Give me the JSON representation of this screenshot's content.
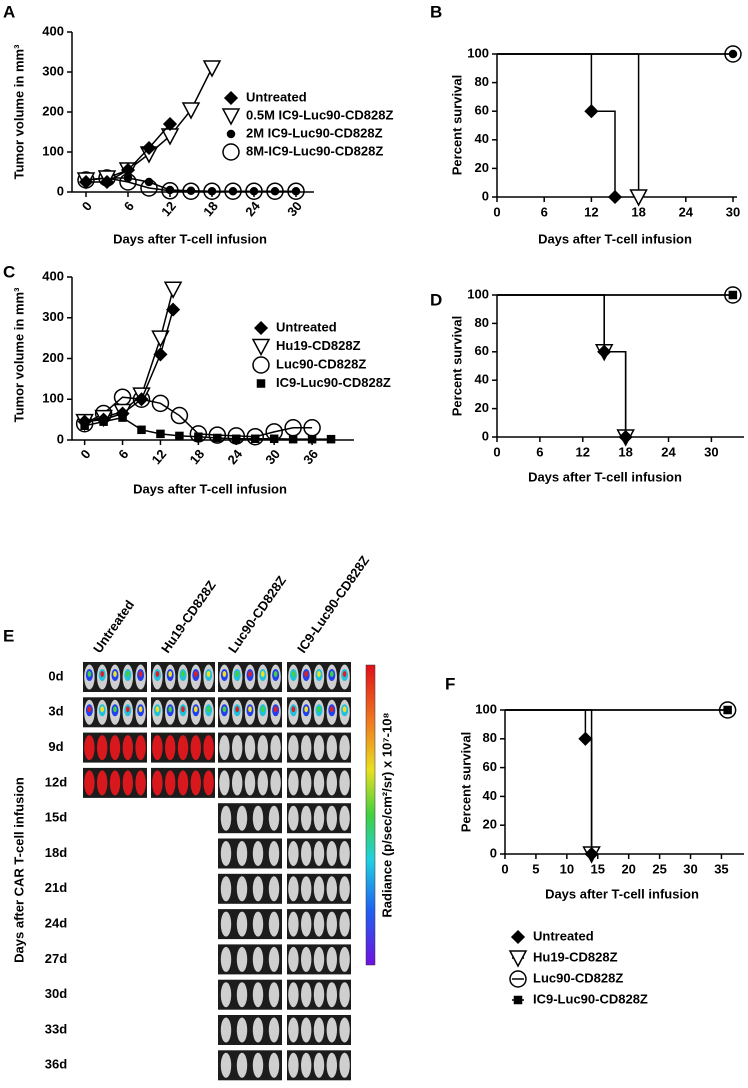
{
  "chart_data": [
    {
      "panel": "A",
      "type": "line",
      "color": "#000000",
      "x_label": "Days after T-cell infusion",
      "y_label": "Tumor volume in mm³",
      "xlim": [
        -2,
        32
      ],
      "ylim": [
        0,
        400
      ],
      "xticks": [
        0,
        6,
        12,
        18,
        24,
        30
      ],
      "yticks": [
        0,
        100,
        200,
        300,
        400
      ],
      "legend": "right",
      "series": [
        {
          "name": "Untreated",
          "marker": "diamond",
          "x": [
            0,
            3,
            6,
            9,
            12
          ],
          "values": [
            25,
            25,
            55,
            110,
            170
          ]
        },
        {
          "name": "0.5M IC9-Luc90-CD828Z",
          "marker": "triangle",
          "x": [
            0,
            3,
            6,
            9,
            12,
            15,
            18
          ],
          "values": [
            30,
            35,
            55,
            95,
            140,
            205,
            310
          ]
        },
        {
          "name": "2M IC9-Luc90-CD828Z",
          "marker": "dot",
          "x": [
            0,
            3,
            6,
            9,
            12,
            15,
            18,
            21,
            24,
            27,
            30
          ],
          "values": [
            30,
            35,
            35,
            25,
            5,
            3,
            2,
            2,
            2,
            2,
            2
          ]
        },
        {
          "name": "8M-IC9-Luc90-CD828Z",
          "marker": "circle",
          "x": [
            0,
            3,
            6,
            9,
            12,
            15,
            18,
            21,
            24,
            27,
            30
          ],
          "values": [
            30,
            35,
            25,
            10,
            3,
            2,
            2,
            2,
            2,
            2,
            2
          ]
        }
      ]
    },
    {
      "panel": "B",
      "type": "step",
      "color": "#000000",
      "x_label": "Days after T-cell infusion",
      "y_label": "Percent survival",
      "xlim": [
        0,
        30
      ],
      "ylim": [
        0,
        100
      ],
      "xticks": [
        0,
        6,
        12,
        18,
        24,
        30
      ],
      "yticks": [
        0,
        20,
        40,
        60,
        80,
        100
      ],
      "series": [
        {
          "marker": "diamond",
          "x": [
            0,
            12,
            15
          ],
          "values": [
            100,
            60,
            0
          ]
        },
        {
          "marker": "triangle",
          "x": [
            0,
            18
          ],
          "values": [
            100,
            0
          ]
        },
        {
          "marker": "dot",
          "x": [
            0,
            30
          ],
          "values": [
            100,
            100
          ]
        },
        {
          "marker": "circle",
          "x": [
            0,
            30
          ],
          "values": [
            100,
            100
          ]
        }
      ]
    },
    {
      "panel": "C",
      "type": "line",
      "color": "#000000",
      "x_label": "Days after T-cell infusion",
      "y_label": "Tumor volume in mm³",
      "xlim": [
        -2,
        42
      ],
      "ylim": [
        0,
        400
      ],
      "xticks": [
        0,
        6,
        12,
        18,
        24,
        30,
        36
      ],
      "yticks": [
        0,
        100,
        200,
        300,
        400
      ],
      "legend": "right",
      "series": [
        {
          "name": "Untreated",
          "marker": "diamond",
          "x": [
            0,
            3,
            6,
            9,
            12,
            14
          ],
          "values": [
            45,
            50,
            65,
            100,
            210,
            320
          ]
        },
        {
          "name": "Hu19-CD828Z",
          "marker": "triangle",
          "x": [
            0,
            3,
            6,
            9,
            12,
            14
          ],
          "values": [
            45,
            55,
            70,
            110,
            250,
            370
          ]
        },
        {
          "name": "Luc90-CD828Z",
          "marker": "circle",
          "x": [
            0,
            3,
            6,
            9,
            12,
            15,
            18,
            21,
            24,
            27,
            30,
            33,
            36
          ],
          "values": [
            40,
            65,
            105,
            100,
            90,
            60,
            15,
            12,
            10,
            8,
            20,
            30,
            30
          ]
        },
        {
          "name": "IC9-Luc90-CD828Z",
          "marker": "square",
          "x": [
            0,
            3,
            6,
            9,
            12,
            15,
            18,
            21,
            24,
            27,
            30,
            33,
            36,
            39
          ],
          "values": [
            35,
            45,
            55,
            25,
            15,
            10,
            8,
            5,
            3,
            3,
            3,
            2,
            2,
            2
          ]
        }
      ]
    },
    {
      "panel": "D",
      "type": "step",
      "color": "#000000",
      "x_label": "Days after T-cell infusion",
      "y_label": "Percent survival",
      "xlim": [
        0,
        34
      ],
      "ylim": [
        0,
        100
      ],
      "xticks": [
        0,
        6,
        12,
        18,
        24,
        30
      ],
      "yticks": [
        0,
        20,
        40,
        60,
        80,
        100
      ],
      "series": [
        {
          "marker": "diamond",
          "x": [
            0,
            15,
            18
          ],
          "values": [
            100,
            60,
            0
          ]
        },
        {
          "marker": "triangle",
          "x": [
            0,
            15,
            18
          ],
          "values": [
            100,
            60,
            0
          ]
        },
        {
          "marker": "circle",
          "x": [
            0,
            33
          ],
          "values": [
            100,
            100
          ]
        },
        {
          "marker": "square",
          "x": [
            0,
            33
          ],
          "values": [
            100,
            100
          ]
        }
      ]
    },
    {
      "panel": "F",
      "type": "step",
      "color": "#000000",
      "x_label": "Days after T-cell infusion",
      "y_label": "Percent survival",
      "xlim": [
        0,
        38
      ],
      "ylim": [
        0,
        100
      ],
      "xticks": [
        0,
        5,
        10,
        15,
        20,
        25,
        30,
        35
      ],
      "yticks": [
        0,
        20,
        40,
        60,
        80,
        100
      ],
      "legend": "bottom",
      "series": [
        {
          "name": "Untreated",
          "marker": "diamond",
          "x": [
            0,
            13,
            14
          ],
          "values": [
            100,
            80,
            0
          ]
        },
        {
          "name": "Hu19-CD828Z",
          "marker": "triangle",
          "x": [
            0,
            14
          ],
          "values": [
            100,
            0
          ]
        },
        {
          "name": "Luc90-CD828Z",
          "marker": "circle",
          "x": [
            0,
            36
          ],
          "values": [
            100,
            100
          ]
        },
        {
          "name": "IC9-Luc90-CD828Z",
          "marker": "square",
          "x": [
            0,
            36
          ],
          "values": [
            100,
            100
          ]
        }
      ]
    }
  ],
  "imaging": {
    "panel": "E",
    "columns": [
      "Untreated",
      "Hu19-CD828Z",
      "Luc90-CD828Z",
      "IC9-Luc90-CD828Z"
    ],
    "rows": [
      "0d",
      "3d",
      "9d",
      "12d",
      "15d",
      "18d",
      "21d",
      "24d",
      "27d",
      "30d",
      "33d",
      "36d"
    ],
    "y_label": "Days after CAR T-cell infusion",
    "colorbar_label": "Radiance (p/sec/cm²/sr) x 10⁷-10⁸"
  }
}
